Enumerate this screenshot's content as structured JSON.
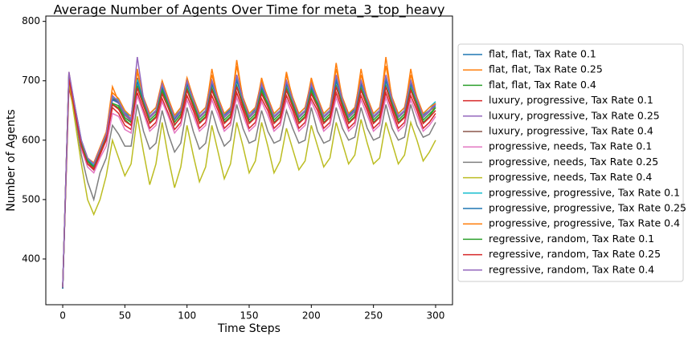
{
  "chart_data": {
    "type": "line",
    "title": "Average Number of Agents Over Time for meta_3_top_heavy",
    "x_label": "Time Steps",
    "y_label": "Number of Agents",
    "xlim": [
      -13.6,
      313.6
    ],
    "ylim": [
      323,
      809
    ],
    "xticks": [
      0,
      50,
      100,
      150,
      200,
      250,
      300
    ],
    "yticks": [
      400,
      500,
      600,
      700,
      800
    ],
    "legend": "right-outside",
    "x": [
      0,
      5,
      10,
      15,
      20,
      25,
      30,
      35,
      40,
      45,
      50,
      55,
      60,
      65,
      70,
      75,
      80,
      85,
      90,
      95,
      100,
      105,
      110,
      115,
      120,
      125,
      130,
      135,
      140,
      145,
      150,
      155,
      160,
      165,
      170,
      175,
      180,
      185,
      190,
      195,
      200,
      205,
      210,
      215,
      220,
      225,
      230,
      235,
      240,
      245,
      250,
      255,
      260,
      265,
      270,
      275,
      280,
      285,
      290,
      295,
      300
    ],
    "series": [
      {
        "name": "flat, flat, Tax Rate 0.1",
        "color": "#1f77b4",
        "values": [
          355,
          712,
          655,
          600,
          570,
          560,
          585,
          610,
          670,
          662,
          648,
          635,
          700,
          668,
          640,
          650,
          690,
          665,
          638,
          650,
          695,
          670,
          640,
          650,
          700,
          672,
          642,
          652,
          705,
          670,
          640,
          652,
          690,
          668,
          640,
          650,
          695,
          668,
          640,
          650,
          690,
          668,
          640,
          650,
          700,
          670,
          642,
          652,
          695,
          668,
          640,
          650,
          700,
          670,
          640,
          650,
          700,
          668,
          642,
          650,
          662
        ]
      },
      {
        "name": "flat, flat, Tax Rate 0.25",
        "color": "#ff7f0e",
        "values": [
          352,
          715,
          648,
          598,
          570,
          560,
          585,
          612,
          690,
          665,
          642,
          632,
          720,
          668,
          638,
          648,
          700,
          662,
          635,
          648,
          705,
          668,
          638,
          648,
          720,
          668,
          638,
          648,
          735,
          668,
          638,
          648,
          705,
          668,
          638,
          648,
          715,
          668,
          640,
          648,
          705,
          668,
          640,
          650,
          730,
          668,
          638,
          648,
          720,
          668,
          638,
          648,
          740,
          668,
          640,
          648,
          720,
          668,
          640,
          650,
          655
        ]
      },
      {
        "name": "flat, flat, Tax Rate 0.4",
        "color": "#2ca02c",
        "values": [
          350,
          708,
          645,
          590,
          560,
          550,
          578,
          600,
          660,
          655,
          635,
          625,
          690,
          660,
          630,
          640,
          680,
          655,
          625,
          640,
          685,
          660,
          630,
          640,
          685,
          660,
          630,
          640,
          690,
          660,
          630,
          640,
          680,
          660,
          630,
          640,
          685,
          660,
          630,
          640,
          680,
          660,
          630,
          640,
          690,
          660,
          630,
          640,
          685,
          660,
          630,
          640,
          690,
          660,
          630,
          640,
          685,
          660,
          630,
          640,
          655
        ]
      },
      {
        "name": "luxury, progressive, Tax Rate 0.1",
        "color": "#d62728",
        "values": [
          352,
          690,
          640,
          590,
          560,
          550,
          575,
          600,
          655,
          645,
          625,
          618,
          680,
          650,
          620,
          630,
          670,
          645,
          618,
          630,
          675,
          650,
          620,
          630,
          675,
          650,
          620,
          630,
          680,
          650,
          620,
          630,
          670,
          650,
          620,
          630,
          675,
          650,
          620,
          630,
          670,
          650,
          620,
          630,
          680,
          650,
          620,
          630,
          675,
          650,
          620,
          630,
          680,
          650,
          620,
          630,
          675,
          650,
          620,
          630,
          645
        ]
      },
      {
        "name": "luxury, progressive, Tax Rate 0.25",
        "color": "#9467bd",
        "values": [
          352,
          705,
          650,
          596,
          566,
          556,
          582,
          606,
          668,
          662,
          642,
          632,
          700,
          668,
          638,
          648,
          690,
          664,
          634,
          648,
          696,
          668,
          638,
          648,
          696,
          668,
          638,
          648,
          702,
          668,
          638,
          648,
          690,
          668,
          638,
          648,
          696,
          668,
          638,
          648,
          690,
          668,
          638,
          648,
          700,
          668,
          638,
          648,
          696,
          668,
          638,
          648,
          702,
          668,
          638,
          648,
          696,
          668,
          638,
          648,
          662
        ]
      },
      {
        "name": "luxury, progressive, Tax Rate 0.4",
        "color": "#8c564b",
        "values": [
          350,
          705,
          648,
          594,
          564,
          552,
          578,
          602,
          672,
          664,
          644,
          634,
          705,
          670,
          640,
          650,
          695,
          668,
          638,
          650,
          700,
          670,
          640,
          650,
          700,
          670,
          640,
          650,
          710,
          670,
          640,
          650,
          695,
          670,
          640,
          650,
          700,
          670,
          640,
          650,
          695,
          670,
          640,
          650,
          705,
          670,
          640,
          650,
          700,
          670,
          640,
          650,
          705,
          670,
          640,
          650,
          700,
          670,
          640,
          650,
          660
        ]
      },
      {
        "name": "progressive, needs, Tax Rate 0.1",
        "color": "#e377c2",
        "values": [
          352,
          700,
          640,
          585,
          555,
          545,
          570,
          590,
          645,
          640,
          618,
          612,
          675,
          645,
          615,
          625,
          665,
          640,
          612,
          625,
          668,
          642,
          615,
          625,
          668,
          642,
          615,
          625,
          672,
          642,
          615,
          625,
          665,
          642,
          615,
          625,
          668,
          642,
          615,
          625,
          665,
          642,
          615,
          625,
          672,
          642,
          615,
          625,
          668,
          642,
          615,
          625,
          672,
          642,
          615,
          625,
          668,
          642,
          615,
          625,
          640
        ]
      },
      {
        "name": "progressive, needs, Tax Rate 0.25",
        "color": "#7f7f7f",
        "values": [
          352,
          705,
          640,
          575,
          530,
          500,
          545,
          570,
          625,
          610,
          590,
          590,
          660,
          615,
          585,
          595,
          650,
          610,
          580,
          595,
          655,
          615,
          585,
          595,
          650,
          615,
          590,
          600,
          660,
          620,
          595,
          600,
          650,
          615,
          595,
          600,
          650,
          620,
          595,
          600,
          655,
          615,
          595,
          600,
          655,
          620,
          600,
          605,
          655,
          620,
          600,
          605,
          660,
          620,
          600,
          605,
          660,
          625,
          605,
          610,
          630
        ]
      },
      {
        "name": "progressive, needs, Tax Rate 0.4",
        "color": "#bcbd22",
        "values": [
          352,
          700,
          630,
          560,
          500,
          475,
          500,
          540,
          600,
          570,
          540,
          560,
          640,
          580,
          525,
          560,
          630,
          570,
          520,
          555,
          625,
          575,
          530,
          555,
          625,
          580,
          535,
          560,
          630,
          590,
          545,
          565,
          630,
          590,
          545,
          565,
          620,
          585,
          550,
          565,
          625,
          590,
          555,
          570,
          630,
          595,
          560,
          575,
          635,
          595,
          560,
          570,
          630,
          595,
          560,
          575,
          630,
          600,
          565,
          580,
          600
        ]
      },
      {
        "name": "progressive, progressive, Tax Rate 0.1",
        "color": "#17becf",
        "values": [
          352,
          712,
          652,
          598,
          568,
          558,
          584,
          610,
          672,
          668,
          648,
          640,
          702,
          672,
          644,
          655,
          692,
          668,
          640,
          655,
          698,
          672,
          644,
          655,
          698,
          672,
          644,
          655,
          702,
          672,
          644,
          655,
          692,
          672,
          644,
          655,
          698,
          672,
          644,
          655,
          692,
          672,
          644,
          655,
          702,
          672,
          644,
          655,
          698,
          672,
          644,
          655,
          702,
          672,
          644,
          655,
          698,
          672,
          644,
          655,
          665
        ]
      },
      {
        "name": "progressive, progressive, Tax Rate 0.25",
        "color": "#1f77b4",
        "values": [
          350,
          708,
          650,
          596,
          566,
          556,
          580,
          606,
          668,
          664,
          645,
          636,
          698,
          668,
          640,
          650,
          688,
          664,
          636,
          650,
          694,
          668,
          640,
          650,
          694,
          668,
          640,
          650,
          700,
          668,
          640,
          650,
          688,
          668,
          640,
          650,
          694,
          668,
          640,
          650,
          688,
          668,
          640,
          650,
          700,
          668,
          640,
          650,
          694,
          668,
          640,
          650,
          700,
          668,
          640,
          650,
          694,
          668,
          640,
          650,
          658
        ]
      },
      {
        "name": "progressive, progressive, Tax Rate 0.4",
        "color": "#ff7f0e",
        "values": [
          352,
          712,
          652,
          598,
          570,
          562,
          588,
          614,
          680,
          670,
          650,
          640,
          715,
          672,
          645,
          655,
          700,
          670,
          642,
          655,
          705,
          672,
          645,
          655,
          710,
          672,
          645,
          655,
          725,
          672,
          645,
          655,
          700,
          672,
          645,
          655,
          710,
          672,
          645,
          655,
          700,
          672,
          645,
          655,
          720,
          672,
          645,
          655,
          710,
          672,
          645,
          655,
          725,
          672,
          645,
          655,
          710,
          672,
          645,
          655,
          662
        ]
      },
      {
        "name": "regressive, random, Tax Rate 0.1",
        "color": "#2ca02c",
        "values": [
          352,
          710,
          648,
          594,
          565,
          555,
          580,
          604,
          662,
          658,
          638,
          630,
          692,
          662,
          634,
          644,
          684,
          660,
          630,
          644,
          688,
          662,
          634,
          644,
          688,
          662,
          634,
          644,
          692,
          662,
          634,
          644,
          684,
          662,
          634,
          644,
          688,
          662,
          634,
          644,
          684,
          662,
          634,
          644,
          692,
          662,
          634,
          644,
          688,
          662,
          634,
          644,
          692,
          662,
          634,
          644,
          688,
          662,
          634,
          644,
          655
        ]
      },
      {
        "name": "regressive, random, Tax Rate 0.25",
        "color": "#d62728",
        "values": [
          352,
          705,
          645,
          590,
          560,
          552,
          578,
          602,
          660,
          652,
          632,
          625,
          688,
          658,
          628,
          638,
          678,
          654,
          626,
          638,
          684,
          656,
          628,
          638,
          684,
          656,
          628,
          638,
          690,
          656,
          628,
          638,
          678,
          656,
          628,
          638,
          684,
          656,
          628,
          638,
          678,
          656,
          628,
          638,
          690,
          656,
          628,
          638,
          684,
          656,
          628,
          638,
          690,
          656,
          628,
          638,
          684,
          656,
          628,
          638,
          650
        ]
      },
      {
        "name": "regressive, random, Tax Rate 0.4",
        "color": "#9467bd",
        "values": [
          352,
          715,
          655,
          600,
          570,
          560,
          585,
          610,
          675,
          665,
          645,
          635,
          740,
          670,
          640,
          650,
          695,
          665,
          638,
          650,
          700,
          668,
          640,
          650,
          700,
          668,
          640,
          650,
          710,
          668,
          640,
          650,
          695,
          668,
          640,
          650,
          700,
          668,
          640,
          650,
          695,
          668,
          640,
          650,
          710,
          668,
          640,
          650,
          700,
          668,
          640,
          650,
          710,
          668,
          640,
          650,
          700,
          668,
          640,
          650,
          660
        ]
      }
    ]
  }
}
